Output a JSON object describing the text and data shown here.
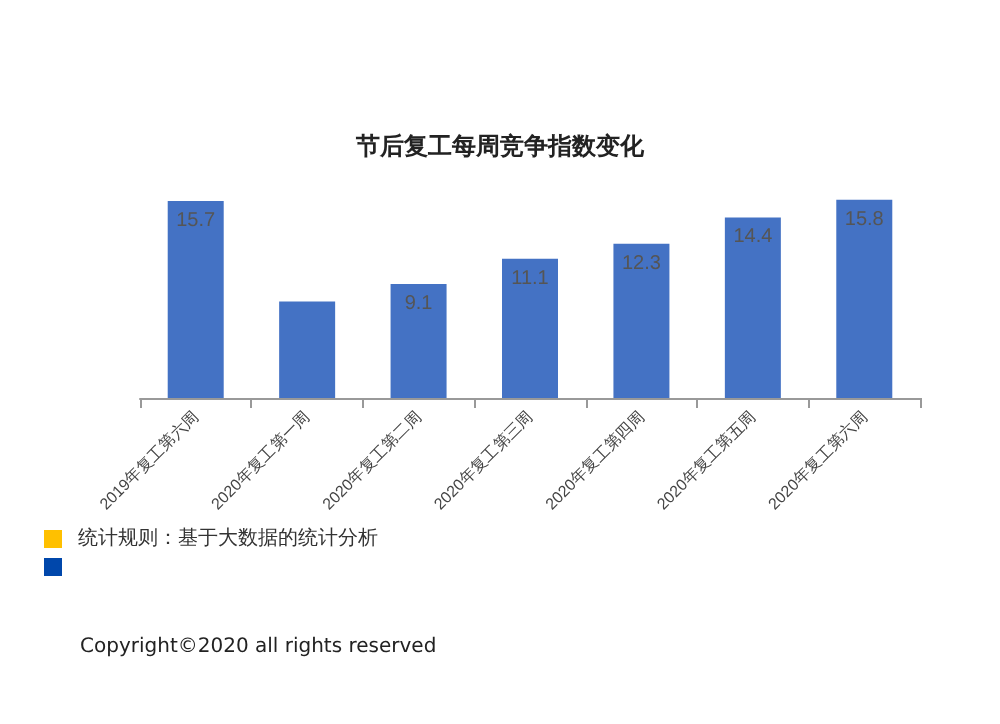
{
  "chart_data": {
    "type": "bar",
    "title": "节后复工每周竞争指数变化",
    "categories": [
      "2019年复工第六周",
      "2020年复工第一周",
      "2020年复工第二周",
      "2020年复工第三周",
      "2020年复工第四周",
      "2020年复工第五周",
      "2020年复工第六周"
    ],
    "values": [
      15.7,
      7.7,
      9.1,
      11.1,
      12.3,
      14.4,
      15.8
    ],
    "value_labels": [
      "15.7",
      null,
      "9.1",
      "11.1",
      "12.3",
      "14.4",
      "15.8"
    ],
    "color": "#4472c4",
    "annotations": [
      "统计规则：基于大数据的统计分析",
      "Copyright©2020 all rights reserved"
    ]
  }
}
